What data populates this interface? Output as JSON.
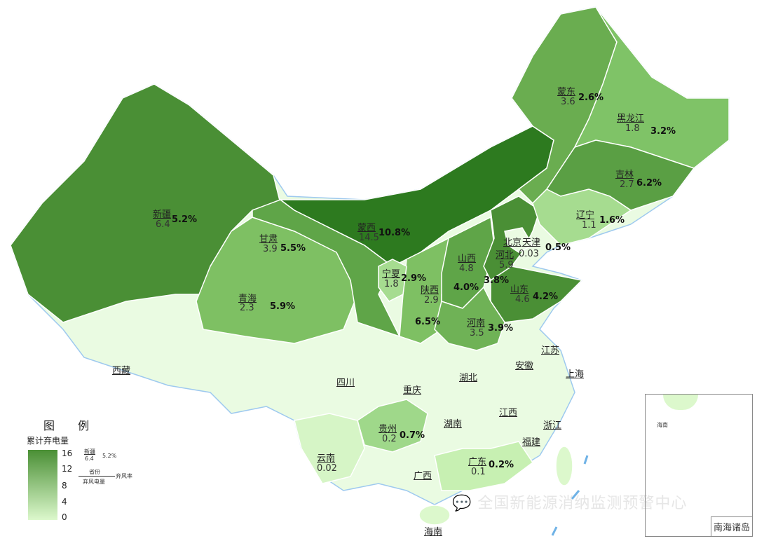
{
  "legend": {
    "title": "图 例",
    "subtitle": "累计弃电量",
    "ticks": [
      "16",
      "12",
      "8",
      "4",
      "0"
    ],
    "range": [
      0,
      16
    ],
    "example": {
      "name": "新疆",
      "value": "6.4",
      "rate": "5.2%"
    },
    "key": {
      "name": "省份",
      "value": "弃风电量",
      "rate": "弃风率"
    },
    "color_high": "#4a8f35",
    "color_low": "#dcf8cc"
  },
  "regions": {
    "xinjiang": {
      "name": "新疆",
      "value": "6.4",
      "rate": "5.2%"
    },
    "gansu": {
      "name": "甘肃",
      "value": "3.9",
      "rate": "5.5%"
    },
    "mengxi": {
      "name": "蒙西",
      "value": "14.5",
      "rate": "10.8%"
    },
    "qinghai": {
      "name": "青海",
      "value": "2.3",
      "rate": "5.9%"
    },
    "ningxia": {
      "name": "宁夏",
      "value": "1.8",
      "rate": "2.9%"
    },
    "shaanxi": {
      "name": "陕西",
      "value": "2.9",
      "rate": "6.5%"
    },
    "shanxi": {
      "name": "山西",
      "value": "4.8",
      "rate": "4.0%"
    },
    "hebei": {
      "name": "河北",
      "value": "5.9",
      "rate": "3.8%"
    },
    "beijing": {
      "name": "北京"
    },
    "tianjin": {
      "name": "天津",
      "value": "0.03",
      "rate": "0.5%"
    },
    "shandong": {
      "name": "山东",
      "value": "4.6",
      "rate": "4.2%"
    },
    "henan": {
      "name": "河南",
      "value": "3.5",
      "rate": "3.9%"
    },
    "mengdong": {
      "name": "蒙东",
      "value": "3.6",
      "rate": "2.6%"
    },
    "heilongjiang": {
      "name": "黑龙江",
      "value": "1.8",
      "rate": "3.2%"
    },
    "jilin": {
      "name": "吉林",
      "value": "2.7",
      "rate": "6.2%"
    },
    "liaoning": {
      "name": "辽宁",
      "value": "1.1",
      "rate": "1.6%"
    },
    "guizhou": {
      "name": "贵州",
      "value": "0.2",
      "rate": "0.7%"
    },
    "yunnan": {
      "name": "云南",
      "value": "0.02"
    },
    "guangdong": {
      "name": "广东",
      "value": "0.1",
      "rate": "0.2%"
    }
  },
  "other_names": {
    "xizang": "西藏",
    "sichuan": "四川",
    "chongqing": "重庆",
    "hubei": "湖北",
    "anhui": "安徽",
    "jiangsu": "江苏",
    "shanghai": "上海",
    "hunan": "湖南",
    "jiangxi": "江西",
    "zhejiang": "浙江",
    "fujian": "福建",
    "guangxi": "广西",
    "hainan": "海南"
  },
  "inset": {
    "label": "南海诸岛",
    "hainan": "海南"
  },
  "watermark": "全国新能源消纳监测预警中心"
}
